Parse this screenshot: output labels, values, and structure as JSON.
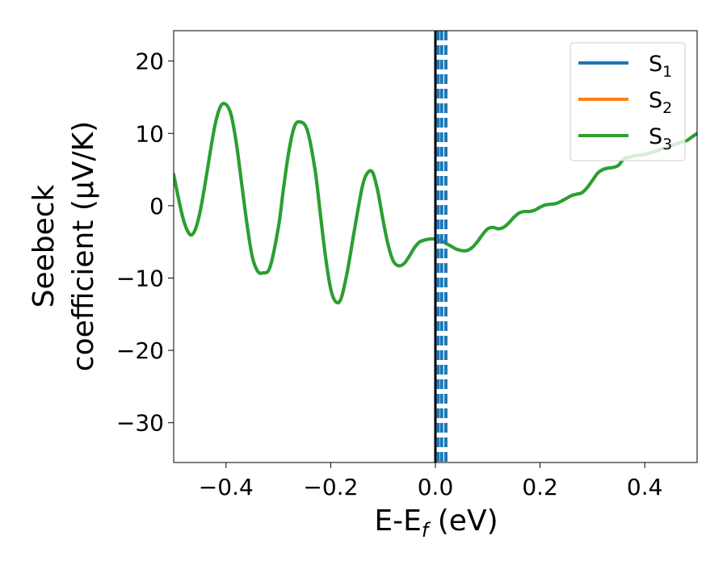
{
  "chart_data": {
    "type": "line",
    "xlabel": "E-E",
    "xlabel_sub": "f",
    "xlabel_unit": " (eV)",
    "ylabel_line1": "Seebeck",
    "ylabel_line2": "coefficient  (μV/K)",
    "xlim": [
      -0.5,
      0.5
    ],
    "ylim": [
      -35.5,
      24.2
    ],
    "xticks": [
      -0.4,
      -0.2,
      0.0,
      0.2,
      0.4
    ],
    "xtick_labels": [
      "−0.4",
      "−0.2",
      "0.0",
      "0.2",
      "0.4"
    ],
    "yticks": [
      20,
      10,
      0,
      -10,
      -20,
      -30
    ],
    "ytick_labels": [
      "20",
      "10",
      "0",
      "−10",
      "−20",
      "−30"
    ],
    "legend_position": "top-right",
    "series": [
      {
        "name": "S",
        "sub": "1",
        "color": "#1f77b4",
        "x": [
          -0.5,
          -0.483,
          -0.47,
          -0.46,
          -0.45,
          -0.44,
          -0.43,
          -0.42,
          -0.41,
          -0.4,
          -0.39,
          -0.38,
          -0.37,
          -0.36,
          -0.35,
          -0.34,
          -0.33,
          -0.316,
          -0.3,
          -0.29,
          -0.28,
          -0.27,
          -0.26,
          -0.245,
          -0.23,
          -0.22,
          -0.21,
          -0.2,
          -0.19,
          -0.18,
          -0.168,
          -0.155,
          -0.14,
          -0.13,
          -0.12,
          -0.11,
          -0.1,
          -0.09,
          -0.08,
          -0.07,
          -0.06,
          -0.05,
          -0.04,
          -0.03,
          -0.018,
          -0.01,
          0.0,
          0.01,
          0.02,
          0.03,
          0.04,
          0.05,
          0.06,
          0.07,
          0.08,
          0.09,
          0.1,
          0.11,
          0.12,
          0.13,
          0.14,
          0.15,
          0.16,
          0.17,
          0.18,
          0.19,
          0.2,
          0.21,
          0.22,
          0.23,
          0.24,
          0.25,
          0.26,
          0.27,
          0.28,
          0.29,
          0.3,
          0.31,
          0.32,
          0.33,
          0.34,
          0.35,
          0.36,
          0.37,
          0.38,
          0.39,
          0.4,
          0.41,
          0.42,
          0.43,
          0.44,
          0.45,
          0.46,
          0.47,
          0.48,
          0.49,
          0.5
        ],
        "y": [
          4.3,
          -1.5,
          -3.9,
          -3.5,
          -1.0,
          3.0,
          7.5,
          11.5,
          13.8,
          14.0,
          12.5,
          8.5,
          3.0,
          -2.5,
          -7.0,
          -9.0,
          -9.3,
          -8.5,
          -3.0,
          2.5,
          7.5,
          10.8,
          11.6,
          10.5,
          5.0,
          -1.0,
          -7.0,
          -11.5,
          -13.3,
          -12.8,
          -9.0,
          -3.5,
          2.5,
          4.5,
          4.6,
          2.0,
          -2.0,
          -5.5,
          -7.7,
          -8.3,
          -8.0,
          -7.0,
          -5.8,
          -5.0,
          -4.7,
          -4.6,
          -4.6,
          -4.8,
          -5.2,
          -5.6,
          -6.0,
          -6.2,
          -6.2,
          -5.8,
          -5.0,
          -4.0,
          -3.2,
          -3.0,
          -3.2,
          -3.0,
          -2.4,
          -1.6,
          -1.0,
          -0.8,
          -0.8,
          -0.6,
          -0.2,
          0.1,
          0.2,
          0.3,
          0.6,
          1.0,
          1.4,
          1.6,
          1.8,
          2.5,
          3.5,
          4.5,
          5.0,
          5.2,
          5.3,
          5.6,
          6.5,
          6.7,
          6.9,
          7.0,
          7.1,
          7.3,
          7.5,
          7.8,
          8.0,
          8.3,
          8.5,
          8.8,
          9.0,
          9.5,
          10.0
        ]
      },
      {
        "name": "S",
        "sub": "2",
        "color": "#ff7f0e",
        "x": [],
        "y": []
      },
      {
        "name": "S",
        "sub": "3",
        "color": "#2ca02c",
        "x": [
          -0.5,
          -0.483,
          -0.47,
          -0.46,
          -0.45,
          -0.44,
          -0.43,
          -0.42,
          -0.41,
          -0.4,
          -0.39,
          -0.38,
          -0.37,
          -0.36,
          -0.35,
          -0.34,
          -0.33,
          -0.316,
          -0.3,
          -0.29,
          -0.28,
          -0.27,
          -0.26,
          -0.245,
          -0.23,
          -0.22,
          -0.21,
          -0.2,
          -0.19,
          -0.18,
          -0.168,
          -0.155,
          -0.14,
          -0.13,
          -0.12,
          -0.11,
          -0.1,
          -0.09,
          -0.08,
          -0.07,
          -0.06,
          -0.05,
          -0.04,
          -0.03,
          -0.018,
          -0.01,
          0.0,
          0.01,
          0.02,
          0.03,
          0.04,
          0.05,
          0.06,
          0.07,
          0.08,
          0.09,
          0.1,
          0.11,
          0.12,
          0.13,
          0.14,
          0.15,
          0.16,
          0.17,
          0.18,
          0.19,
          0.2,
          0.21,
          0.22,
          0.23,
          0.24,
          0.25,
          0.26,
          0.27,
          0.28,
          0.29,
          0.3,
          0.31,
          0.32,
          0.33,
          0.34,
          0.35,
          0.36,
          0.37,
          0.38,
          0.39,
          0.4,
          0.41,
          0.42,
          0.43,
          0.44,
          0.45,
          0.46,
          0.47,
          0.48,
          0.49,
          0.5
        ],
        "y": [
          4.3,
          -1.5,
          -3.9,
          -3.5,
          -1.0,
          3.0,
          7.5,
          11.5,
          13.8,
          14.0,
          12.5,
          8.5,
          3.0,
          -2.5,
          -7.0,
          -9.0,
          -9.3,
          -8.5,
          -3.0,
          2.5,
          7.5,
          10.8,
          11.6,
          10.5,
          5.0,
          -1.0,
          -7.0,
          -11.5,
          -13.3,
          -12.8,
          -9.0,
          -3.5,
          2.5,
          4.5,
          4.6,
          2.0,
          -2.0,
          -5.5,
          -7.7,
          -8.3,
          -8.0,
          -7.0,
          -5.8,
          -5.0,
          -4.7,
          -4.6,
          -4.6,
          -4.8,
          -5.2,
          -5.6,
          -6.0,
          -6.2,
          -6.2,
          -5.8,
          -5.0,
          -4.0,
          -3.2,
          -3.0,
          -3.2,
          -3.0,
          -2.4,
          -1.6,
          -1.0,
          -0.8,
          -0.8,
          -0.6,
          -0.2,
          0.1,
          0.2,
          0.3,
          0.6,
          1.0,
          1.4,
          1.6,
          1.8,
          2.5,
          3.5,
          4.5,
          5.0,
          5.2,
          5.3,
          5.6,
          6.5,
          6.7,
          6.9,
          7.0,
          7.1,
          7.3,
          7.5,
          7.8,
          8.0,
          8.3,
          8.5,
          8.8,
          9.0,
          9.5,
          10.0
        ]
      }
    ],
    "vertical_lines": [
      {
        "x": 0.0,
        "style": "solid",
        "color": "#000000"
      },
      {
        "x": 0.005,
        "style": "dashed",
        "color": "#1f77b4"
      },
      {
        "x": 0.012,
        "style": "dashed",
        "color": "#1f77b4"
      },
      {
        "x": 0.02,
        "style": "dashed",
        "color": "#1f77b4"
      }
    ]
  }
}
